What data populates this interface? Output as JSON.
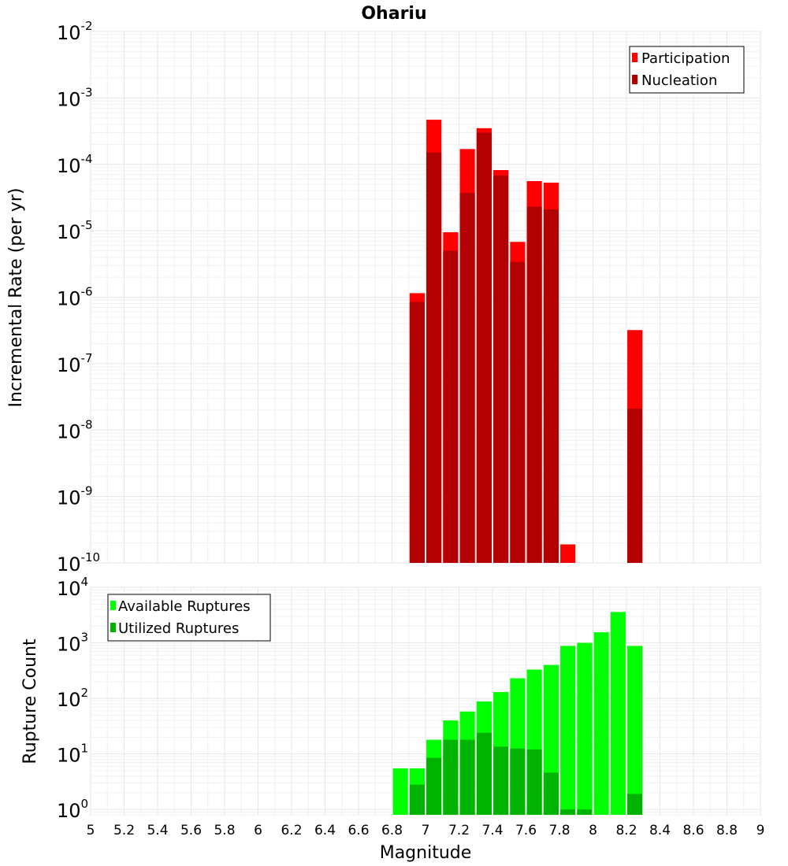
{
  "chart_data": [
    {
      "type": "bar",
      "title": "Ohariu",
      "ylabel": "Incremental Rate (per yr)",
      "xlabel": "",
      "yscale": "log",
      "ylim": [
        1e-10,
        0.01
      ],
      "xlim": [
        5,
        9
      ],
      "y_tick_base": "10",
      "y_tick_exponents": [
        "-10",
        "-9",
        "-8",
        "-7",
        "-6",
        "-5",
        "-4",
        "-3",
        "-2"
      ],
      "legend_position": "top-right",
      "series": [
        {
          "name": "Participation",
          "color": "#ff0000",
          "points": [
            {
              "x": 6.95,
              "y": 1.15e-06
            },
            {
              "x": 7.05,
              "y": 0.00047
            },
            {
              "x": 7.15,
              "y": 9.5e-06
            },
            {
              "x": 7.25,
              "y": 0.00017
            },
            {
              "x": 7.35,
              "y": 0.00035
            },
            {
              "x": 7.45,
              "y": 8.2e-05
            },
            {
              "x": 7.55,
              "y": 6.8e-06
            },
            {
              "x": 7.65,
              "y": 5.6e-05
            },
            {
              "x": 7.75,
              "y": 5.3e-05
            },
            {
              "x": 7.85,
              "y": 1.9e-10
            },
            {
              "x": 8.25,
              "y": 3.2e-07
            }
          ]
        },
        {
          "name": "Nucleation",
          "color": "#b30000",
          "points": [
            {
              "x": 6.95,
              "y": 8.5e-07
            },
            {
              "x": 7.05,
              "y": 0.00015
            },
            {
              "x": 7.15,
              "y": 5e-06
            },
            {
              "x": 7.25,
              "y": 3.7e-05
            },
            {
              "x": 7.35,
              "y": 0.0003
            },
            {
              "x": 7.45,
              "y": 6.8e-05
            },
            {
              "x": 7.55,
              "y": 3.4e-06
            },
            {
              "x": 7.65,
              "y": 2.3e-05
            },
            {
              "x": 7.75,
              "y": 2.1e-05
            },
            {
              "x": 8.25,
              "y": 2.1e-08
            }
          ]
        }
      ]
    },
    {
      "type": "bar",
      "title": "",
      "ylabel": "Rupture Count",
      "xlabel": "Magnitude",
      "yscale": "log",
      "ylim": [
        0.8,
        10000.0
      ],
      "xlim": [
        5,
        9
      ],
      "y_tick_base": "10",
      "y_tick_exponents": [
        "0",
        "1",
        "2",
        "3",
        "4"
      ],
      "x_ticks": [
        "5",
        "5.2",
        "5.4",
        "5.6",
        "5.8",
        "6",
        "6.2",
        "6.4",
        "6.6",
        "6.8",
        "7",
        "7.2",
        "7.4",
        "7.6",
        "7.8",
        "8",
        "8.2",
        "8.4",
        "8.6",
        "8.8",
        "9"
      ],
      "legend_position": "top-left",
      "series": [
        {
          "name": "Available Ruptures",
          "color": "#00ff00",
          "points": [
            {
              "x": 6.85,
              "y": 5.5
            },
            {
              "x": 6.95,
              "y": 5.5
            },
            {
              "x": 7.05,
              "y": 18
            },
            {
              "x": 7.15,
              "y": 40
            },
            {
              "x": 7.25,
              "y": 58
            },
            {
              "x": 7.35,
              "y": 88
            },
            {
              "x": 7.45,
              "y": 130
            },
            {
              "x": 7.55,
              "y": 230
            },
            {
              "x": 7.65,
              "y": 330
            },
            {
              "x": 7.75,
              "y": 400
            },
            {
              "x": 7.85,
              "y": 880
            },
            {
              "x": 7.95,
              "y": 1000
            },
            {
              "x": 8.05,
              "y": 1550
            },
            {
              "x": 8.15,
              "y": 3600
            },
            {
              "x": 8.25,
              "y": 880
            }
          ]
        },
        {
          "name": "Utilized Ruptures",
          "color": "#00b300",
          "points": [
            {
              "x": 6.95,
              "y": 2.8
            },
            {
              "x": 7.05,
              "y": 8.5
            },
            {
              "x": 7.15,
              "y": 18
            },
            {
              "x": 7.25,
              "y": 18
            },
            {
              "x": 7.35,
              "y": 24
            },
            {
              "x": 7.45,
              "y": 13.5
            },
            {
              "x": 7.55,
              "y": 12.5
            },
            {
              "x": 7.65,
              "y": 12
            },
            {
              "x": 7.75,
              "y": 4.6
            },
            {
              "x": 7.85,
              "y": 1
            },
            {
              "x": 7.95,
              "y": 1
            },
            {
              "x": 8.25,
              "y": 1.9
            }
          ]
        }
      ]
    }
  ]
}
